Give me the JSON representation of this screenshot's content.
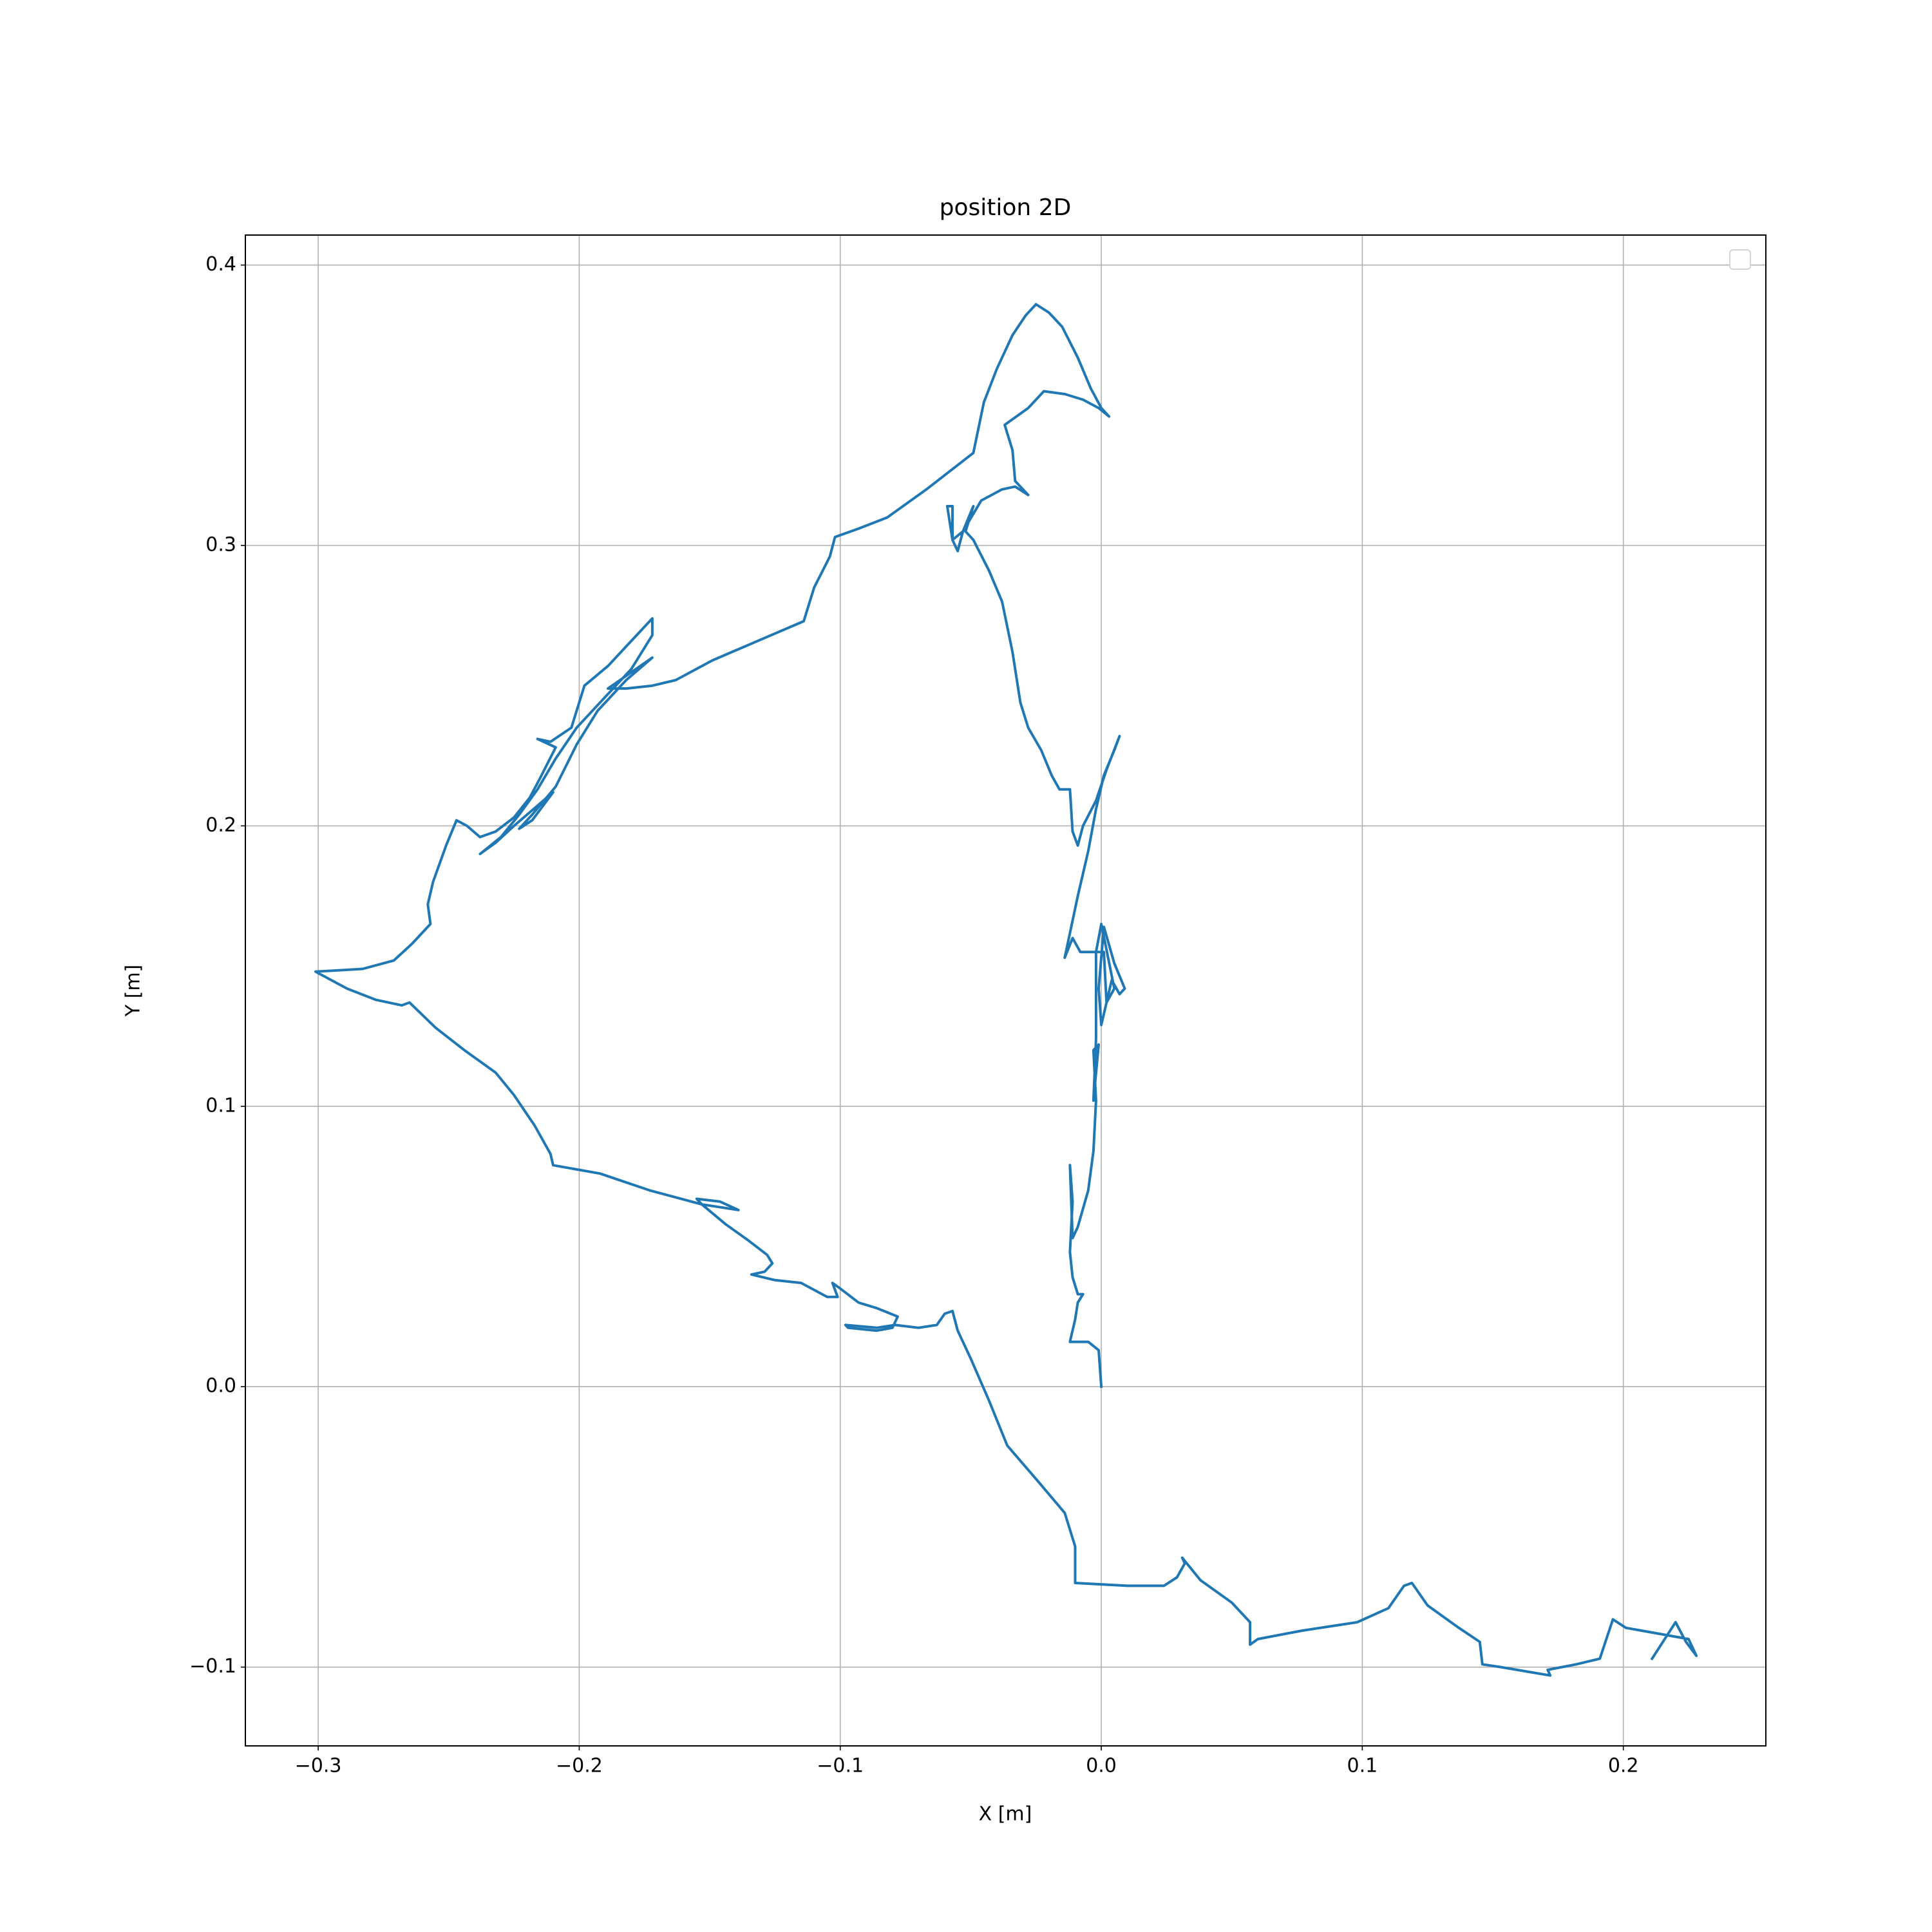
{
  "chart_data": {
    "type": "line",
    "title": "position 2D",
    "xlabel": "X [m]",
    "ylabel": "Y [m]",
    "color": "#1f77b4",
    "grid": true,
    "legend": "upper right",
    "xlim": [
      -0.3279,
      0.2546
    ],
    "ylim": [
      -0.1281,
      0.4107
    ],
    "xticks": [
      {
        "value": -0.3,
        "label": "−0.3"
      },
      {
        "value": -0.2,
        "label": "−0.2"
      },
      {
        "value": -0.1,
        "label": "−0.1"
      },
      {
        "value": 0,
        "label": "0.0"
      },
      0.1,
      0.2
    ],
    "yticks": [
      {
        "value": -0.1,
        "label": "−0.1"
      },
      {
        "value": 0,
        "label": "0.0"
      },
      0.1,
      0.2,
      0.3,
      0.4
    ],
    "x": [
      0,
      -0.001,
      -0.005,
      -0.012,
      -0.01,
      -0.009,
      -0.007,
      -0.009,
      -0.011,
      -0.012,
      -0.011,
      -0.012,
      -0.011,
      -0.009,
      -0.005,
      -0.003,
      -0.002,
      -0.003,
      -0.001,
      -0.003,
      -0.002,
      -0.002,
      -0.002,
      0,
      0.005,
      0.002,
      0,
      -0.001,
      0.001,
      0.005,
      0.009,
      0.007,
      0.004,
      0.002,
      0.001,
      -0.003,
      -0.008,
      -0.011,
      -0.014,
      -0.009,
      -0.005,
      -0.002,
      0.001,
      0.005,
      0.007,
      0.002,
      -0.002,
      -0.007,
      -0.009,
      -0.011,
      -0.012,
      -0.016,
      -0.019,
      -0.023,
      -0.028,
      -0.031,
      -0.034,
      -0.038,
      -0.043,
      -0.049,
      -0.052,
      -0.049,
      -0.053,
      -0.055,
      -0.057,
      -0.059,
      -0.057,
      -0.057,
      -0.053,
      -0.046,
      -0.038,
      -0.033,
      -0.028,
      -0.033,
      -0.034,
      -0.037,
      -0.028,
      -0.022,
      -0.014,
      -0.007,
      -0.001,
      0.003,
      0,
      -0.004,
      -0.009,
      -0.015,
      -0.02,
      -0.025,
      -0.029,
      -0.034,
      -0.04,
      -0.045,
      -0.049,
      -0.067,
      -0.082,
      -0.093,
      -0.102,
      -0.104,
      -0.11,
      -0.114,
      -0.129,
      -0.149,
      -0.163,
      -0.172,
      -0.182,
      -0.189,
      -0.172,
      -0.182,
      -0.193,
      -0.201,
      -0.209,
      -0.218,
      -0.223,
      -0.218,
      -0.21,
      -0.225,
      -0.232,
      -0.238,
      -0.23,
      -0.223,
      -0.216,
      -0.209,
      -0.201,
      -0.192,
      -0.18,
      -0.172,
      -0.172,
      -0.18,
      -0.189,
      -0.198,
      -0.2,
      -0.203,
      -0.211,
      -0.216,
      -0.209,
      -0.215,
      -0.219,
      -0.225,
      -0.232,
      -0.238,
      -0.243,
      -0.247,
      -0.251,
      -0.256,
      -0.258,
      -0.257,
      -0.264,
      -0.271,
      -0.283,
      -0.301,
      -0.289,
      -0.278,
      -0.268,
      -0.265,
      -0.255,
      -0.244,
      -0.232,
      -0.225,
      -0.217,
      -0.211,
      -0.21,
      -0.192,
      -0.173,
      -0.153,
      -0.139,
      -0.146,
      -0.155,
      -0.153,
      -0.144,
      -0.135,
      -0.128,
      -0.126,
      -0.129,
      -0.134,
      -0.125,
      -0.115,
      -0.105,
      -0.101,
      -0.103,
      -0.1,
      -0.093,
      -0.086,
      -0.078,
      -0.08,
      -0.086,
      -0.097,
      -0.098,
      -0.086,
      -0.079,
      -0.07,
      -0.063,
      -0.06,
      -0.057,
      -0.055,
      -0.05,
      -0.043,
      -0.036,
      -0.024,
      -0.014,
      -0.01,
      -0.01,
      0.01,
      0.024,
      0.029,
      0.032,
      0.031,
      0.038,
      0.05,
      0.057,
      0.057,
      0.06,
      0.077,
      0.098,
      0.11,
      0.116,
      0.119,
      0.125,
      0.137,
      0.145,
      0.146,
      0.153,
      0.172,
      0.171,
      0.182,
      0.191,
      0.196,
      0.201,
      0.213,
      0.225,
      0.228,
      0.224,
      0.22,
      0.211
    ],
    "values": [
      0,
      0.013,
      0.016,
      0.016,
      0.024,
      0.03,
      0.033,
      0.033,
      0.039,
      0.048,
      0.066,
      0.079,
      0.053,
      0.057,
      0.07,
      0.084,
      0.102,
      0.12,
      0.122,
      0.102,
      0.124,
      0.137,
      0.155,
      0.165,
      0.142,
      0.137,
      0.129,
      0.142,
      0.164,
      0.151,
      0.142,
      0.14,
      0.145,
      0.137,
      0.155,
      0.155,
      0.155,
      0.16,
      0.153,
      0.175,
      0.191,
      0.206,
      0.218,
      0.227,
      0.232,
      0.22,
      0.209,
      0.2,
      0.193,
      0.198,
      0.213,
      0.213,
      0.218,
      0.227,
      0.235,
      0.244,
      0.262,
      0.28,
      0.291,
      0.302,
      0.305,
      0.314,
      0.305,
      0.298,
      0.302,
      0.314,
      0.314,
      0.302,
      0.305,
      0.316,
      0.32,
      0.321,
      0.318,
      0.323,
      0.334,
      0.343,
      0.349,
      0.355,
      0.354,
      0.352,
      0.349,
      0.346,
      0.349,
      0.356,
      0.367,
      0.378,
      0.383,
      0.386,
      0.382,
      0.375,
      0.363,
      0.351,
      0.333,
      0.32,
      0.31,
      0.306,
      0.303,
      0.296,
      0.285,
      0.273,
      0.267,
      0.259,
      0.252,
      0.25,
      0.249,
      0.249,
      0.26,
      0.252,
      0.241,
      0.229,
      0.214,
      0.204,
      0.199,
      0.202,
      0.212,
      0.2,
      0.194,
      0.19,
      0.196,
      0.204,
      0.213,
      0.224,
      0.235,
      0.244,
      0.256,
      0.268,
      0.274,
      0.266,
      0.257,
      0.25,
      0.244,
      0.235,
      0.23,
      0.231,
      0.228,
      0.217,
      0.21,
      0.203,
      0.198,
      0.196,
      0.2,
      0.202,
      0.193,
      0.18,
      0.172,
      0.165,
      0.158,
      0.152,
      0.149,
      0.148,
      0.142,
      0.138,
      0.136,
      0.137,
      0.128,
      0.12,
      0.112,
      0.104,
      0.093,
      0.083,
      0.079,
      0.076,
      0.07,
      0.065,
      0.063,
      0.066,
      0.067,
      0.065,
      0.058,
      0.052,
      0.047,
      0.044,
      0.041,
      0.04,
      0.038,
      0.037,
      0.032,
      0.032,
      0.037,
      0.035,
      0.03,
      0.028,
      0.025,
      0.021,
      0.02,
      0.021,
      0.022,
      0.021,
      0.022,
      0.021,
      0.022,
      0.026,
      0.027,
      0.02,
      0.01,
      -0.005,
      -0.021,
      -0.034,
      -0.045,
      -0.057,
      -0.07,
      -0.071,
      -0.071,
      -0.068,
      -0.063,
      -0.061,
      -0.069,
      -0.077,
      -0.084,
      -0.092,
      -0.09,
      -0.087,
      -0.084,
      -0.079,
      -0.071,
      -0.07,
      -0.078,
      -0.086,
      -0.091,
      -0.099,
      -0.1,
      -0.103,
      -0.101,
      -0.099,
      -0.097,
      -0.083,
      -0.086,
      -0.088,
      -0.09,
      -0.096,
      -0.091,
      -0.084,
      -0.097
    ]
  }
}
